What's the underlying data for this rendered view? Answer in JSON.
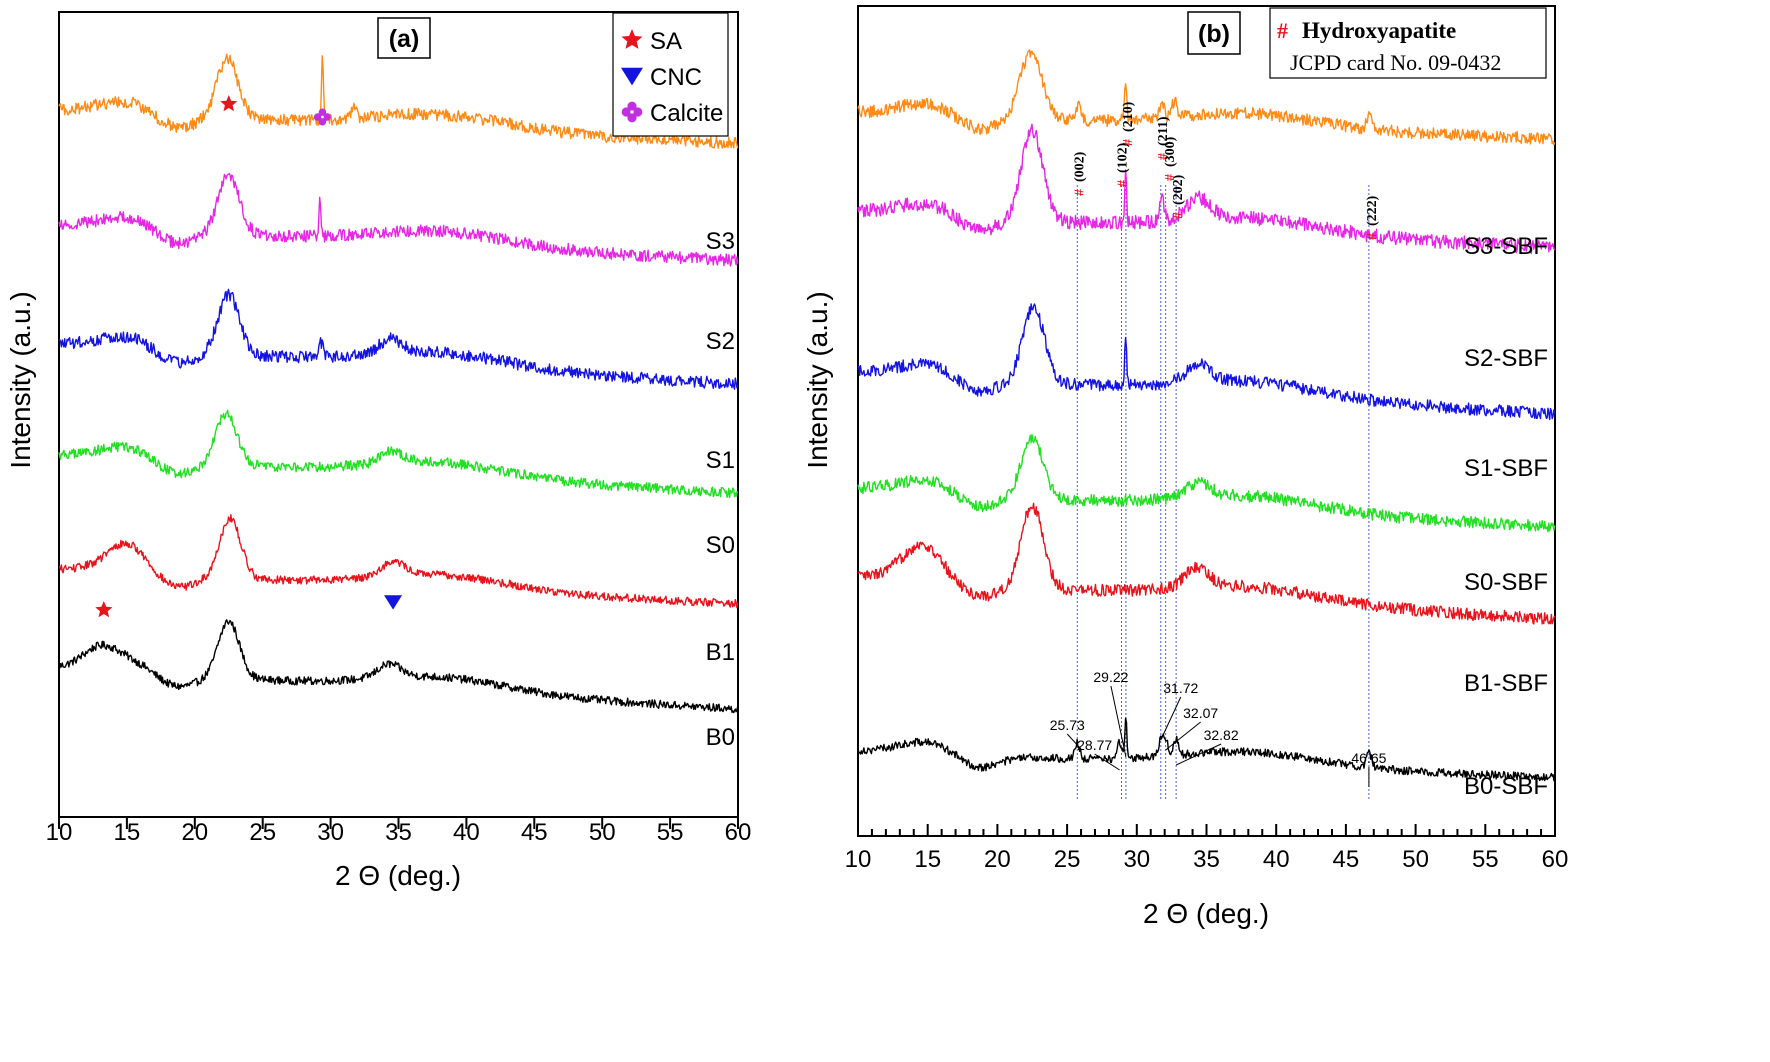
{
  "chart_data": [
    {
      "panel": "(a)",
      "type": "line",
      "xlabel": "2 Θ (deg.)",
      "ylabel": "Intensity (a.u.)",
      "xlim": [
        10,
        60
      ],
      "xticks": [
        10,
        15,
        20,
        25,
        30,
        35,
        40,
        45,
        50,
        55,
        60
      ],
      "grid": false,
      "legend": {
        "placement": "top-right",
        "entries": [
          {
            "symbol": "star",
            "label": "SA",
            "color": "#e8141c"
          },
          {
            "symbol": "triangle-down",
            "label": "CNC",
            "color": "#1414e0"
          },
          {
            "symbol": "clover",
            "label": "Calcite",
            "color": "#c030e0"
          }
        ]
      },
      "series": [
        {
          "name": "B0",
          "color": "#000000",
          "peaks": [
            13.0,
            22.5,
            34.3
          ],
          "endpoints": [
            0.58,
            0.12
          ]
        },
        {
          "name": "B1",
          "color": "#e8141c",
          "peaks": [
            15.0,
            22.6,
            34.6
          ],
          "endpoints": [
            0.56,
            0.18
          ]
        },
        {
          "name": "S0",
          "color": "#22e022",
          "peaks": [
            22.3,
            34.5
          ],
          "endpoints": [
            0.72,
            0.3
          ]
        },
        {
          "name": "S1",
          "color": "#1414e0",
          "peaks": [
            22.5,
            29.3,
            34.4
          ],
          "endpoints": [
            0.84,
            0.4
          ]
        },
        {
          "name": "S2",
          "color": "#e628e6",
          "peaks": [
            22.5,
            29.2
          ],
          "endpoints": [
            0.94,
            0.55
          ]
        },
        {
          "name": "S3",
          "color": "#ff8a14",
          "peaks": [
            22.4,
            29.4,
            31.7
          ],
          "endpoints": [
            1.0,
            0.63
          ]
        }
      ],
      "annotations": [
        {
          "symbol": "star",
          "x": 13.3,
          "series": "B0",
          "meaning": "SA"
        },
        {
          "symbol": "triangle-down",
          "x": 34.6,
          "series": "B1",
          "meaning": "CNC"
        },
        {
          "symbol": "star",
          "x": 22.5,
          "series": "S3",
          "meaning": "SA"
        },
        {
          "symbol": "clover",
          "x": 29.4,
          "series": "S3",
          "meaning": "Calcite"
        }
      ]
    },
    {
      "panel": "(b)",
      "type": "line",
      "xlabel": "2 Θ (deg.)",
      "ylabel": "Intensity (a.u.)",
      "xlim": [
        10,
        60
      ],
      "xticks": [
        10,
        15,
        20,
        25,
        30,
        35,
        40,
        45,
        50,
        55,
        60
      ],
      "grid": false,
      "legend": {
        "placement": "top-right",
        "symbol": "#",
        "symbol_color": "#e8141c",
        "title": "Hydroxyapatite",
        "subtitle": "JCPD card No. 09-0432"
      },
      "series": [
        {
          "name": "B0-SBF",
          "color": "#000000",
          "peaks": [
            25.73,
            28.77,
            29.22,
            31.72,
            32.07,
            32.82,
            46.65
          ],
          "endpoints": [
            0.32,
            0.03
          ]
        },
        {
          "name": "B1-SBF",
          "color": "#e8141c",
          "peaks": [
            14.5,
            22.5,
            34.3
          ],
          "endpoints": [
            0.7,
            0.23
          ]
        },
        {
          "name": "S0-SBF",
          "color": "#22e022",
          "peaks": [
            22.5,
            34.4
          ],
          "endpoints": [
            0.74,
            0.31
          ]
        },
        {
          "name": "S1-SBF",
          "color": "#1414e0",
          "peaks": [
            22.6,
            29.2,
            34.4
          ],
          "endpoints": [
            0.87,
            0.4
          ]
        },
        {
          "name": "S2-SBF",
          "color": "#e628e6",
          "peaks": [
            22.5,
            29.2,
            31.8,
            34.4
          ],
          "endpoints": [
            0.98,
            0.58
          ]
        },
        {
          "name": "S3-SBF",
          "color": "#ff8a14",
          "peaks": [
            22.4,
            25.8,
            29.2,
            31.8,
            32.7,
            46.7
          ],
          "endpoints": [
            0.97,
            0.68
          ]
        }
      ],
      "peak_labels": [
        {
          "x": 25.73,
          "text": "25.73"
        },
        {
          "x": 28.77,
          "text": "28.77"
        },
        {
          "x": 29.22,
          "text": "29.22"
        },
        {
          "x": 31.72,
          "text": "31.72"
        },
        {
          "x": 32.07,
          "text": "32.07"
        },
        {
          "x": 32.82,
          "text": "32.82"
        },
        {
          "x": 46.65,
          "text": "46.65"
        }
      ],
      "hkl_labels": [
        {
          "x": 25.8,
          "text": "(002)"
        },
        {
          "x": 28.9,
          "text": "(102)"
        },
        {
          "x": 29.3,
          "text": "(210)"
        },
        {
          "x": 31.8,
          "text": "(211)"
        },
        {
          "x": 32.3,
          "text": "(300)"
        },
        {
          "x": 32.9,
          "text": "(202)"
        },
        {
          "x": 46.8,
          "text": "(222)"
        }
      ],
      "reference_lines_x": [
        25.73,
        28.9,
        29.22,
        31.72,
        32.07,
        32.82,
        46.65
      ]
    }
  ]
}
